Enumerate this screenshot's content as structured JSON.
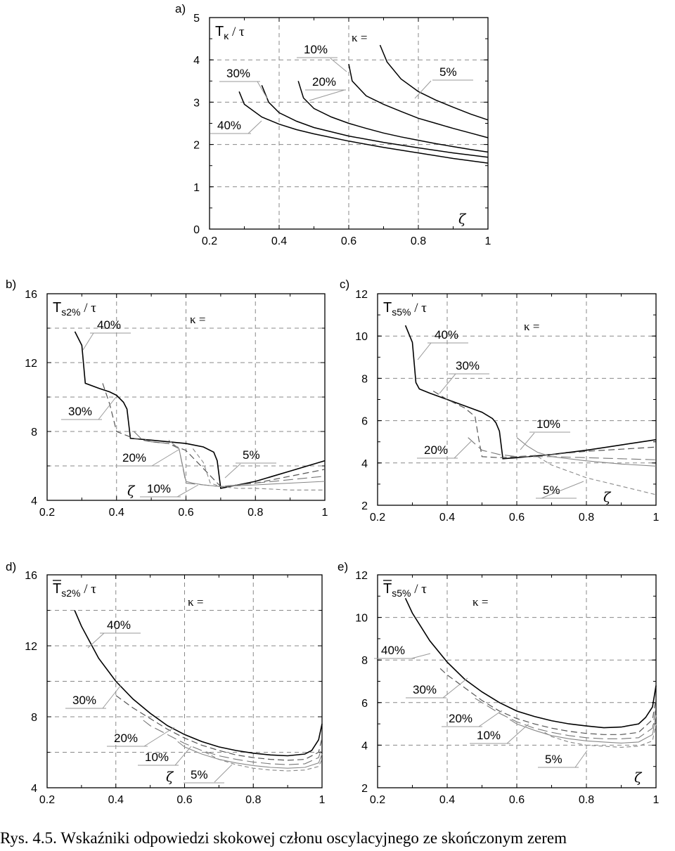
{
  "caption": "Rys. 4.5. Wskaźniki odpowiedzi skokowej członu oscylacyjnego ze skończonym zerem",
  "chart_data": [
    {
      "panel": "a)",
      "type": "line",
      "ylabel_main": "T",
      "ylabel_sub": "κ",
      "ylabel_tail": " / τ",
      "kappa_label": "κ =",
      "xlabel": "ζ",
      "xlim": [
        0.2,
        1
      ],
      "ylim": [
        0,
        5
      ],
      "xticks": [
        "0.2",
        "0.4",
        "0.6",
        "0.8",
        "1"
      ],
      "yticks": [
        "0",
        "1",
        "2",
        "3",
        "4",
        "5"
      ],
      "series": [
        {
          "name": "5%",
          "x": [
            0.69,
            0.71,
            0.75,
            0.8,
            0.85,
            0.9,
            0.95,
            1.0
          ],
          "y": [
            4.35,
            3.95,
            3.55,
            3.25,
            3.05,
            2.88,
            2.72,
            2.58
          ]
        },
        {
          "name": "10%",
          "x": [
            0.6,
            0.61,
            0.65,
            0.7,
            0.75,
            0.8,
            0.85,
            0.9,
            0.95,
            1.0
          ],
          "y": [
            3.9,
            3.5,
            3.15,
            2.95,
            2.78,
            2.62,
            2.5,
            2.38,
            2.27,
            2.16
          ]
        },
        {
          "name": "20%",
          "x": [
            0.455,
            0.47,
            0.5,
            0.55,
            0.6,
            0.65,
            0.7,
            0.75,
            0.8,
            0.85,
            0.9,
            0.95,
            1.0
          ],
          "y": [
            3.5,
            3.1,
            2.85,
            2.65,
            2.5,
            2.38,
            2.27,
            2.18,
            2.1,
            2.02,
            1.95,
            1.88,
            1.82
          ]
        },
        {
          "name": "30%",
          "x": [
            0.35,
            0.37,
            0.4,
            0.45,
            0.5,
            0.6,
            0.7,
            0.8,
            0.9,
            1.0
          ],
          "y": [
            3.4,
            3.0,
            2.75,
            2.55,
            2.4,
            2.2,
            2.05,
            1.92,
            1.8,
            1.7
          ]
        },
        {
          "name": "40%",
          "x": [
            0.285,
            0.3,
            0.35,
            0.4,
            0.45,
            0.5,
            0.6,
            0.7,
            0.8,
            0.9,
            1.0
          ],
          "y": [
            3.25,
            2.95,
            2.65,
            2.48,
            2.35,
            2.25,
            2.08,
            1.93,
            1.8,
            1.67,
            1.56
          ]
        }
      ]
    },
    {
      "panel": "b)",
      "type": "line",
      "ylabel_main": "T",
      "ylabel_sub": "s2%",
      "ylabel_tail": " / τ",
      "kappa_label": "κ =",
      "xlabel": "ζ",
      "xlim": [
        0.2,
        1
      ],
      "ylim": [
        4,
        16
      ],
      "xticks": [
        "0.2",
        "0.4",
        "0.6",
        "0.8",
        "1"
      ],
      "yticks": [
        "4",
        "8",
        "12",
        "16"
      ],
      "series": [
        {
          "name": "40%",
          "x": [
            0.28,
            0.3,
            0.31,
            0.35,
            0.38,
            0.4,
            0.42,
            0.43,
            0.44,
            0.5,
            0.55,
            0.6,
            0.65,
            0.68,
            0.69,
            0.7,
            0.75,
            0.8,
            0.85,
            0.9,
            0.95,
            1.0
          ],
          "y": [
            13.8,
            13.0,
            10.8,
            10.5,
            10.3,
            10.1,
            9.7,
            9.3,
            7.6,
            7.5,
            7.4,
            7.3,
            7.1,
            6.8,
            6.3,
            4.7,
            4.9,
            5.1,
            5.4,
            5.7,
            6.0,
            6.3
          ]
        },
        {
          "name": "30%",
          "x": [
            0.36,
            0.38,
            0.4,
            0.45,
            0.5,
            0.55,
            0.6,
            0.7,
            0.8,
            0.9,
            1.0
          ],
          "y": [
            10.8,
            9.6,
            8.0,
            7.6,
            7.4,
            7.3,
            6.9,
            4.8,
            5.0,
            5.4,
            5.8
          ]
        },
        {
          "name": "20%",
          "x": [
            0.45,
            0.47,
            0.5,
            0.55,
            0.58,
            0.6,
            0.65,
            0.7,
            0.75,
            0.8,
            0.9,
            1.0
          ],
          "y": [
            8.0,
            7.6,
            7.4,
            7.3,
            7.0,
            5.0,
            4.9,
            4.8,
            4.9,
            5.0,
            5.2,
            5.4
          ]
        },
        {
          "name": "10%",
          "x": [
            0.55,
            0.58,
            0.6,
            0.62,
            0.65,
            0.7,
            0.75,
            0.8,
            0.9,
            1.0
          ],
          "y": [
            7.5,
            7.0,
            5.1,
            5.0,
            4.9,
            4.8,
            4.85,
            4.9,
            5.0,
            5.1
          ]
        },
        {
          "name": "5%",
          "x": [
            0.62,
            0.65,
            0.67,
            0.7,
            0.75,
            0.8,
            0.9,
            1.0
          ],
          "y": [
            7.0,
            6.2,
            5.0,
            4.8,
            4.7,
            4.7,
            4.6,
            4.6
          ]
        }
      ]
    },
    {
      "panel": "c)",
      "type": "line",
      "ylabel_main": "T",
      "ylabel_sub": "s5%",
      "ylabel_tail": " / τ",
      "kappa_label": "κ =",
      "xlabel": "ζ",
      "xlim": [
        0.2,
        1
      ],
      "ylim": [
        2,
        12
      ],
      "xticks": [
        "0.2",
        "0.4",
        "0.6",
        "0.8",
        "1"
      ],
      "yticks": [
        "2",
        "4",
        "6",
        "8",
        "10",
        "12"
      ],
      "series": [
        {
          "name": "40%",
          "x": [
            0.28,
            0.3,
            0.31,
            0.32,
            0.35,
            0.4,
            0.45,
            0.5,
            0.53,
            0.54,
            0.55,
            0.56,
            0.6,
            0.7,
            0.8,
            0.9,
            1.0
          ],
          "y": [
            10.5,
            9.7,
            7.8,
            7.5,
            7.3,
            7.0,
            6.7,
            6.4,
            6.1,
            5.9,
            5.5,
            4.2,
            4.25,
            4.4,
            4.6,
            4.85,
            5.1
          ]
        },
        {
          "name": "30%",
          "x": [
            0.36,
            0.4,
            0.45,
            0.48,
            0.49,
            0.5,
            0.55,
            0.6,
            0.7,
            0.8,
            0.9,
            1.0
          ],
          "y": [
            7.4,
            7.0,
            6.6,
            6.2,
            5.2,
            4.3,
            4.25,
            4.3,
            4.4,
            4.55,
            4.65,
            4.75
          ]
        },
        {
          "name": "20%",
          "x": [
            0.46,
            0.48,
            0.5,
            0.55,
            0.6,
            0.7,
            0.8,
            0.9,
            1.0
          ],
          "y": [
            5.2,
            4.9,
            4.6,
            4.4,
            4.3,
            4.3,
            4.25,
            4.2,
            4.15
          ]
        },
        {
          "name": "10%",
          "x": [
            0.6,
            0.63,
            0.66,
            0.7,
            0.8,
            0.9,
            1.0
          ],
          "y": [
            5.2,
            4.8,
            4.5,
            4.3,
            4.1,
            3.95,
            3.85
          ]
        },
        {
          "name": "5%",
          "x": [
            0.66,
            0.68,
            0.7,
            0.75,
            0.8,
            0.85,
            0.9,
            0.95,
            1.0
          ],
          "y": [
            4.3,
            4.1,
            3.9,
            3.6,
            3.3,
            3.1,
            2.9,
            2.7,
            2.5
          ]
        }
      ]
    },
    {
      "panel": "d)",
      "type": "line",
      "ylabel_main": "T",
      "ylabel_sub": "s2%",
      "ylabel_tail": " / τ",
      "ylabel_bar": true,
      "kappa_label": "κ =",
      "xlabel": "ζ",
      "xlim": [
        0.2,
        1
      ],
      "ylim": [
        4,
        16
      ],
      "xticks": [
        "0.2",
        "0.4",
        "0.6",
        "0.8",
        "1"
      ],
      "yticks": [
        "4",
        "8",
        "12",
        "16"
      ],
      "series": [
        {
          "name": "40%",
          "x": [
            0.28,
            0.3,
            0.35,
            0.4,
            0.45,
            0.5,
            0.55,
            0.6,
            0.65,
            0.7,
            0.75,
            0.8,
            0.85,
            0.9,
            0.95,
            0.97,
            0.99,
            1.0
          ],
          "y": [
            14.0,
            13.1,
            11.3,
            10.0,
            9.0,
            8.2,
            7.5,
            7.0,
            6.6,
            6.3,
            6.1,
            5.95,
            5.85,
            5.8,
            5.9,
            6.1,
            6.7,
            7.6
          ]
        },
        {
          "name": "30%",
          "x": [
            0.4,
            0.45,
            0.5,
            0.55,
            0.6,
            0.65,
            0.7,
            0.75,
            0.8,
            0.85,
            0.9,
            0.95,
            0.99,
            1.0
          ],
          "y": [
            9.2,
            8.5,
            7.9,
            7.3,
            6.8,
            6.4,
            6.1,
            5.85,
            5.7,
            5.6,
            5.55,
            5.6,
            6.0,
            6.8
          ]
        },
        {
          "name": "20%",
          "x": [
            0.48,
            0.5,
            0.55,
            0.6,
            0.65,
            0.7,
            0.75,
            0.8,
            0.85,
            0.9,
            0.95,
            0.99,
            1.0
          ],
          "y": [
            7.8,
            7.5,
            7.0,
            6.5,
            6.1,
            5.8,
            5.6,
            5.45,
            5.35,
            5.3,
            5.35,
            5.7,
            6.3
          ]
        },
        {
          "name": "10%",
          "x": [
            0.58,
            0.6,
            0.65,
            0.7,
            0.75,
            0.8,
            0.85,
            0.9,
            0.95,
            0.99,
            1.0
          ],
          "y": [
            6.6,
            6.3,
            5.9,
            5.6,
            5.4,
            5.25,
            5.15,
            5.1,
            5.15,
            5.4,
            5.9
          ]
        },
        {
          "name": "5%",
          "x": [
            0.66,
            0.7,
            0.75,
            0.8,
            0.85,
            0.9,
            0.95,
            0.99,
            1.0
          ],
          "y": [
            6.0,
            5.6,
            5.3,
            5.1,
            5.0,
            4.95,
            5.0,
            5.2,
            5.6
          ]
        }
      ]
    },
    {
      "panel": "e)",
      "type": "line",
      "ylabel_main": "T",
      "ylabel_sub": "s5%",
      "ylabel_tail": " / τ",
      "ylabel_bar": true,
      "kappa_label": "κ =",
      "xlabel": "ζ",
      "xlim": [
        0.2,
        1
      ],
      "ylim": [
        2,
        12
      ],
      "xticks": [
        "0.2",
        "0.4",
        "0.6",
        "0.8",
        "1"
      ],
      "yticks": [
        "2",
        "4",
        "6",
        "8",
        "10",
        "12"
      ],
      "series": [
        {
          "name": "40%",
          "x": [
            0.28,
            0.3,
            0.35,
            0.4,
            0.45,
            0.5,
            0.55,
            0.6,
            0.65,
            0.7,
            0.75,
            0.8,
            0.85,
            0.9,
            0.95,
            0.97,
            0.99,
            1.0
          ],
          "y": [
            10.9,
            10.2,
            8.9,
            7.9,
            7.1,
            6.5,
            6.0,
            5.6,
            5.35,
            5.15,
            5.0,
            4.9,
            4.82,
            4.85,
            5.0,
            5.3,
            5.8,
            6.8
          ]
        },
        {
          "name": "30%",
          "x": [
            0.38,
            0.4,
            0.45,
            0.5,
            0.55,
            0.6,
            0.65,
            0.7,
            0.75,
            0.8,
            0.85,
            0.9,
            0.95,
            0.99,
            1.0
          ],
          "y": [
            7.6,
            7.3,
            6.7,
            6.1,
            5.6,
            5.25,
            5.0,
            4.8,
            4.65,
            4.55,
            4.5,
            4.5,
            4.6,
            5.2,
            6.2
          ]
        },
        {
          "name": "20%",
          "x": [
            0.48,
            0.5,
            0.55,
            0.6,
            0.65,
            0.7,
            0.75,
            0.8,
            0.85,
            0.9,
            0.95,
            0.99,
            1.0
          ],
          "y": [
            6.2,
            6.0,
            5.5,
            5.1,
            4.8,
            4.6,
            4.45,
            4.35,
            4.3,
            4.3,
            4.35,
            4.8,
            5.8
          ]
        },
        {
          "name": "10%",
          "x": [
            0.58,
            0.6,
            0.65,
            0.7,
            0.75,
            0.8,
            0.85,
            0.9,
            0.95,
            0.99,
            1.0
          ],
          "y": [
            5.2,
            5.0,
            4.7,
            4.45,
            4.3,
            4.2,
            4.15,
            4.1,
            4.15,
            4.5,
            5.4
          ]
        },
        {
          "name": "5%",
          "x": [
            0.68,
            0.7,
            0.75,
            0.8,
            0.85,
            0.9,
            0.95,
            0.99,
            1.0
          ],
          "y": [
            4.6,
            4.4,
            4.15,
            4.0,
            3.95,
            3.9,
            3.95,
            4.2,
            5.0
          ]
        }
      ]
    }
  ]
}
